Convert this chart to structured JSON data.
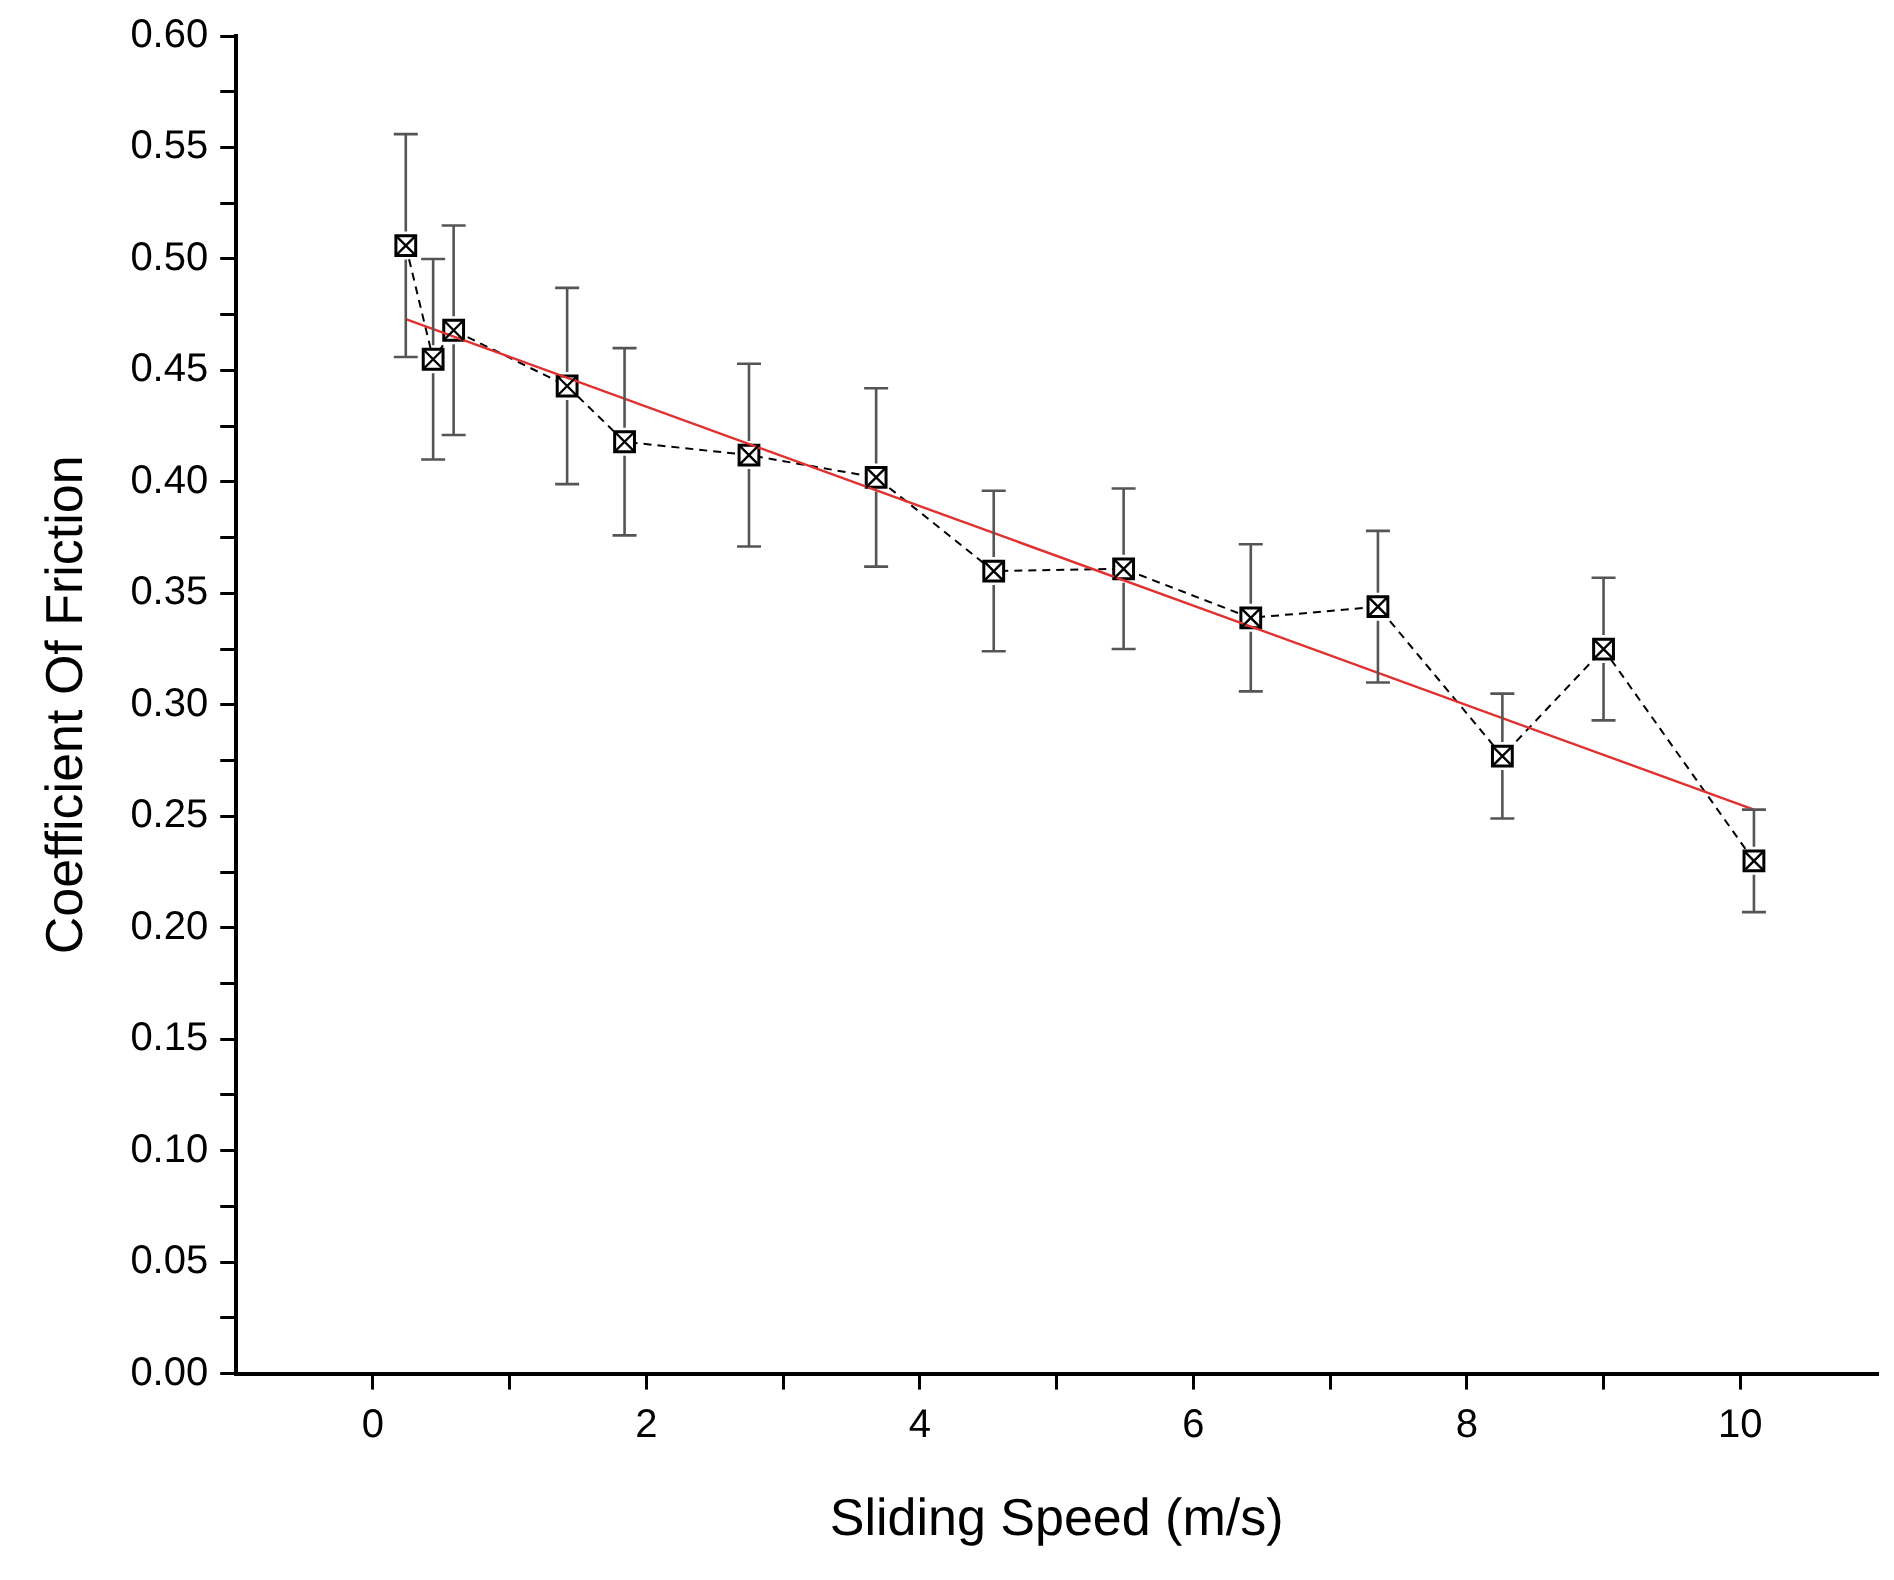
{
  "chart_data": {
    "type": "line",
    "xlabel": "Sliding Speed (m/s)",
    "ylabel": "Coefficient Of Friction",
    "xlim": [
      -1,
      11
    ],
    "xticks": [
      0,
      {
        "value": 1,
        "label": null
      },
      2,
      {
        "value": 3,
        "label": null
      },
      4,
      {
        "value": 5,
        "label": null
      },
      6,
      {
        "value": 7,
        "label": null
      },
      8,
      {
        "value": 9,
        "label": null
      },
      10
    ],
    "ylim": [
      0,
      0.6
    ],
    "yticks": [
      {
        "value": 0,
        "label": "0.00"
      },
      {
        "value": 0.025,
        "label": null
      },
      {
        "value": 0.05,
        "label": "0.05"
      },
      {
        "value": 0.075,
        "label": null
      },
      {
        "value": 0.1,
        "label": "0.10"
      },
      {
        "value": 0.125,
        "label": null
      },
      {
        "value": 0.15,
        "label": "0.15"
      },
      {
        "value": 0.175,
        "label": null
      },
      {
        "value": 0.2,
        "label": "0.20"
      },
      {
        "value": 0.225,
        "label": null
      },
      {
        "value": 0.25,
        "label": "0.25"
      },
      {
        "value": 0.275,
        "label": null
      },
      {
        "value": 0.3,
        "label": "0.30"
      },
      {
        "value": 0.325,
        "label": null
      },
      {
        "value": 0.35,
        "label": "0.35"
      },
      {
        "value": 0.375,
        "label": null
      },
      {
        "value": 0.4,
        "label": "0.40"
      },
      {
        "value": 0.425,
        "label": null
      },
      {
        "value": 0.45,
        "label": "0.45"
      },
      {
        "value": 0.475,
        "label": null
      },
      {
        "value": 0.5,
        "label": "0.50"
      },
      {
        "value": 0.525,
        "label": null
      },
      {
        "value": 0.55,
        "label": "0.55"
      },
      {
        "value": 0.575,
        "label": null
      },
      {
        "value": 0.6,
        "label": "0.60"
      }
    ],
    "grid": false,
    "legend": false,
    "series": [
      {
        "type": "line",
        "color": "#000000",
        "marker": "square",
        "line_style": "dashed",
        "x": [
          0.24,
          0.44,
          0.59,
          1.42,
          1.84,
          2.75,
          3.68,
          4.54,
          5.49,
          6.42,
          7.35,
          8.26,
          9.0,
          10.1
        ],
        "values": [
          0.506,
          0.455,
          0.468,
          0.443,
          0.418,
          0.412,
          0.402,
          0.36,
          0.361,
          0.339,
          0.344,
          0.277,
          0.325,
          0.23
        ],
        "errors": [
          0.05,
          0.045,
          0.047,
          0.044,
          0.042,
          0.041,
          0.04,
          0.036,
          0.036,
          0.033,
          0.034,
          0.028,
          0.032,
          0.023
        ]
      },
      {
        "type": "line",
        "color": "#e03030",
        "marker": "none",
        "line_style": "solid",
        "x": [
          0.24,
          10.1
        ],
        "values": [
          0.473,
          0.253
        ]
      }
    ]
  }
}
